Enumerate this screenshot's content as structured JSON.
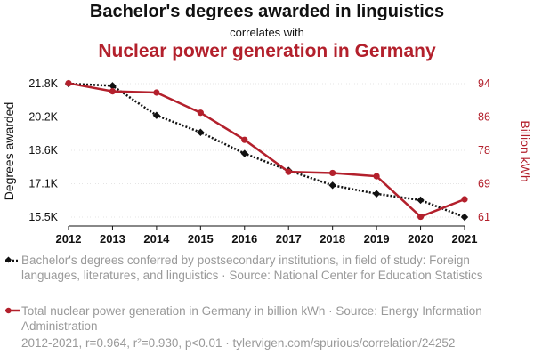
{
  "title_line1": "Bachelor's degrees awarded in linguistics",
  "title_line2": "correlates with",
  "title_line3": "Nuclear power generation in Germany",
  "colors": {
    "series1": "#111111",
    "series2": "#b3202c",
    "muted": "#999999"
  },
  "chart_data": {
    "type": "line",
    "x": [
      2012,
      2013,
      2014,
      2015,
      2016,
      2017,
      2018,
      2019,
      2020,
      2021
    ],
    "ylabel_left": "Degrees awarded",
    "ylabel_right": "Billion kWh",
    "left_ticks": [
      "21.8K",
      "20.2K",
      "18.6K",
      "17.1K",
      "15.5K"
    ],
    "right_ticks": [
      "94",
      "86",
      "78",
      "69",
      "61"
    ],
    "ylim_left": [
      15500,
      21800
    ],
    "ylim_right": [
      61,
      94
    ],
    "grid": true,
    "series": [
      {
        "name": "Bachelor's degrees conferred by postsecondary institutions, in field of study: Foreign languages, literatures, and linguistics",
        "axis": "left",
        "style": "dotted",
        "marker": "diamond",
        "values": [
          21800,
          21700,
          20300,
          19500,
          18500,
          17700,
          17000,
          16600,
          16300,
          15500
        ]
      },
      {
        "name": "Total nuclear power generation in Germany in billion kWh",
        "axis": "right",
        "style": "solid",
        "marker": "circle",
        "values": [
          94.1,
          92.1,
          91.8,
          86.8,
          80.1,
          72.2,
          71.9,
          71.1,
          61.1,
          65.4
        ]
      }
    ]
  },
  "legend": {
    "series1_text": "Bachelor's degrees conferred by postsecondary institutions, in field of study: Foreign languages, literatures, and linguistics · Source: National Center for Education Statistics",
    "series2_text": "Total nuclear power generation in Germany in billion kWh · Source: Energy Information Administration"
  },
  "footer": "2012-2021, r=0.964, r²=0.930, p<0.01 · tylervigen.com/spurious/correlation/24252"
}
